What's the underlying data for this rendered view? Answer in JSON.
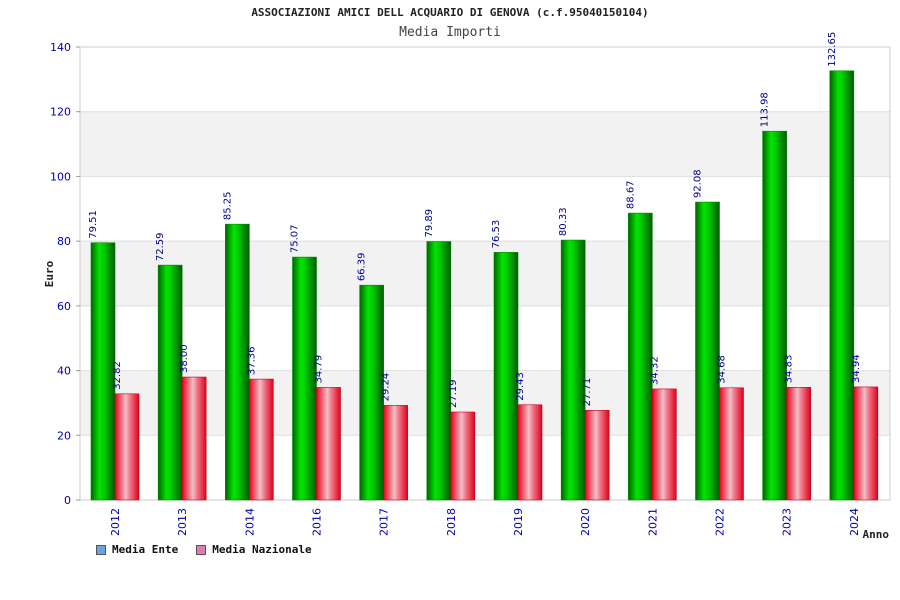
{
  "header": {
    "title": "ASSOCIAZIONI AMICI DELL ACQUARIO DI GENOVA (c.f.95040150104)",
    "subtitle": "Media Importi"
  },
  "colors": {
    "ente": "#00b400",
    "nazionale": "#e0001a",
    "legend_ente": "#66a3e0",
    "legend_nazionale": "#e07ab0",
    "axis_label": "#0000aa",
    "value_label": "#000088"
  },
  "legend": {
    "items": [
      {
        "label": "Media Ente"
      },
      {
        "label": "Media Nazionale"
      }
    ]
  },
  "chart_data": {
    "type": "bar",
    "title": "ASSOCIAZIONI AMICI DELL ACQUARIO DI GENOVA (c.f.95040150104)",
    "subtitle": "Media Importi",
    "xlabel": "Anno",
    "ylabel": "Euro",
    "ylim": [
      0,
      140
    ],
    "yticks": [
      0,
      20,
      40,
      60,
      80,
      100,
      120,
      140
    ],
    "grid": true,
    "legend_position": "bottom-left",
    "categories": [
      "2012",
      "2013",
      "2014",
      "2016",
      "2017",
      "2018",
      "2019",
      "2020",
      "2021",
      "2022",
      "2023",
      "2024"
    ],
    "series": [
      {
        "name": "Media Ente",
        "values": [
          79.51,
          72.59,
          85.25,
          75.07,
          66.39,
          79.89,
          76.53,
          80.33,
          88.67,
          92.08,
          113.98,
          132.65
        ],
        "labels": [
          "79.51",
          "72.59",
          "85.25",
          "75.07",
          "66.39",
          "79.89",
          "76.53",
          "80.33",
          "88.67",
          "92.08",
          "113.98",
          "132.65"
        ]
      },
      {
        "name": "Media Nazionale",
        "values": [
          32.82,
          38.0,
          37.36,
          34.79,
          29.24,
          27.19,
          29.43,
          27.71,
          34.32,
          34.68,
          34.83,
          34.94
        ],
        "labels": [
          "32.82",
          "38.00",
          "37.36",
          "34.79",
          "29.24",
          "27.19",
          "29.43",
          "27.71",
          "34.32",
          "34.68",
          "34.83",
          "34.94"
        ]
      }
    ]
  }
}
